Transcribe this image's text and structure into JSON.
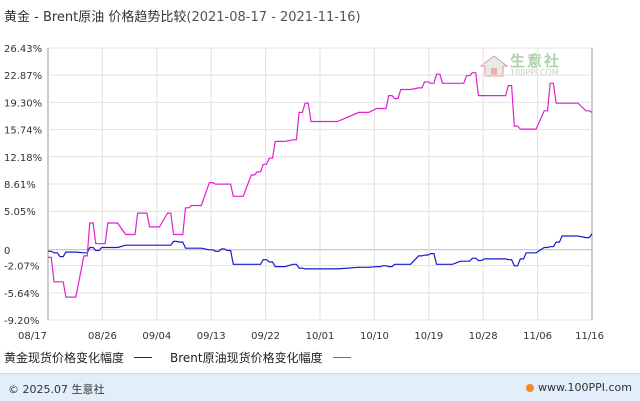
{
  "header": {
    "title": "黄金 - Brent原油 价格趋势比较",
    "date_range": "(2021-08-17 - 2021-11-16)"
  },
  "legend": [
    {
      "label": "黄金现货价格变化幅度",
      "color": "#1a1acc"
    },
    {
      "label": "Brent原油现货价格变化幅度",
      "color": "#e020d0"
    }
  ],
  "footer": {
    "copyright": "© 2025.07 生意社",
    "site": "www.100PPI.com"
  },
  "watermark": {
    "name": "生意社",
    "url": "100PPI.COM"
  },
  "chart_data": {
    "type": "line",
    "title": "黄金 - Brent原油 价格趋势比较",
    "ylim": [
      -9.2,
      26.43
    ],
    "y_ticks": [
      "26.43%",
      "22.87%",
      "19.30%",
      "15.74%",
      "12.18%",
      "8.61%",
      "5.05%",
      "0",
      "-2.07%",
      "-5.64%",
      "-9.20%"
    ],
    "y_tick_values": [
      26.43,
      22.87,
      19.3,
      15.74,
      12.18,
      8.61,
      5.05,
      0,
      -2.07,
      -5.64,
      -9.2
    ],
    "x_ticks": [
      "08/17",
      "08/26",
      "09/04",
      "09/13",
      "09/22",
      "10/01",
      "10/10",
      "10/19",
      "10/28",
      "11/06",
      "11/16"
    ],
    "x_range": [
      "2021-08-17",
      "2021-11-16"
    ],
    "grid": true,
    "legend_position": "bottom",
    "series": [
      {
        "name": "黄金现货价格变化幅度",
        "color": "#1a1acc",
        "x": [
          "2021-08-17",
          "2021-08-18",
          "2021-08-19",
          "2021-08-20",
          "2021-08-23",
          "2021-08-24",
          "2021-08-25",
          "2021-08-26",
          "2021-08-27",
          "2021-08-30",
          "2021-08-31",
          "2021-09-01",
          "2021-09-02",
          "2021-09-03",
          "2021-09-06",
          "2021-09-07",
          "2021-09-08",
          "2021-09-09",
          "2021-09-10",
          "2021-09-13",
          "2021-09-14",
          "2021-09-15",
          "2021-09-16",
          "2021-09-17",
          "2021-09-20",
          "2021-09-21",
          "2021-09-22",
          "2021-09-23",
          "2021-09-24",
          "2021-09-27",
          "2021-09-28",
          "2021-09-29",
          "2021-09-30",
          "2021-10-08",
          "2021-10-11",
          "2021-10-12",
          "2021-10-13",
          "2021-10-14",
          "2021-10-15",
          "2021-10-18",
          "2021-10-19",
          "2021-10-20",
          "2021-10-21",
          "2021-10-22",
          "2021-10-25",
          "2021-10-26",
          "2021-10-27",
          "2021-10-28",
          "2021-10-29",
          "2021-11-01",
          "2021-11-02",
          "2021-11-03",
          "2021-11-04",
          "2021-11-05",
          "2021-11-08",
          "2021-11-09",
          "2021-11-10",
          "2021-11-11",
          "2021-11-12",
          "2021-11-15",
          "2021-11-16"
        ],
        "values": [
          -0.2,
          -0.4,
          -0.9,
          -0.3,
          -0.4,
          0.3,
          -0.1,
          0.3,
          0.3,
          0.6,
          0.6,
          0.6,
          0.6,
          0.6,
          0.6,
          1.1,
          1.0,
          0.2,
          0.2,
          0.0,
          -0.2,
          0.1,
          -0.1,
          -1.9,
          -1.9,
          -1.9,
          -1.3,
          -1.6,
          -2.2,
          -1.9,
          -2.4,
          -2.5,
          -2.5,
          -2.3,
          -2.2,
          -2.1,
          -2.2,
          -1.9,
          -1.9,
          -0.8,
          -0.7,
          -0.5,
          -1.9,
          -1.9,
          -1.5,
          -1.5,
          -1.1,
          -1.4,
          -1.2,
          -1.2,
          -1.3,
          -2.1,
          -1.2,
          -0.4,
          0.3,
          0.4,
          1.0,
          1.8,
          1.8,
          1.6,
          2.1
        ]
      },
      {
        "name": "Brent原油现货价格变化幅度",
        "color": "#e020d0",
        "x": [
          "2021-08-17",
          "2021-08-18",
          "2021-08-19",
          "2021-08-20",
          "2021-08-23",
          "2021-08-24",
          "2021-08-25",
          "2021-08-26",
          "2021-08-27",
          "2021-08-30",
          "2021-08-31",
          "2021-09-01",
          "2021-09-02",
          "2021-09-03",
          "2021-09-06",
          "2021-09-07",
          "2021-09-08",
          "2021-09-09",
          "2021-09-10",
          "2021-09-13",
          "2021-09-14",
          "2021-09-15",
          "2021-09-16",
          "2021-09-17",
          "2021-09-20",
          "2021-09-21",
          "2021-09-22",
          "2021-09-23",
          "2021-09-24",
          "2021-09-27",
          "2021-09-28",
          "2021-09-29",
          "2021-09-30",
          "2021-10-08",
          "2021-10-11",
          "2021-10-12",
          "2021-10-13",
          "2021-10-14",
          "2021-10-15",
          "2021-10-18",
          "2021-10-19",
          "2021-10-20",
          "2021-10-21",
          "2021-10-22",
          "2021-10-25",
          "2021-10-26",
          "2021-10-27",
          "2021-10-28",
          "2021-10-29",
          "2021-11-01",
          "2021-11-02",
          "2021-11-03",
          "2021-11-04",
          "2021-11-05",
          "2021-11-08",
          "2021-11-09",
          "2021-11-10",
          "2021-11-11",
          "2021-11-12",
          "2021-11-15",
          "2021-11-16"
        ],
        "values": [
          -1.0,
          -4.2,
          -4.2,
          -6.2,
          -0.8,
          3.5,
          0.8,
          0.8,
          3.5,
          2.0,
          2.0,
          4.8,
          4.8,
          3.0,
          4.8,
          2.0,
          2.0,
          5.5,
          5.8,
          8.8,
          8.6,
          8.6,
          8.6,
          7.0,
          9.8,
          10.2,
          11.2,
          12.0,
          14.2,
          14.4,
          18.0,
          19.2,
          16.8,
          18.0,
          18.5,
          18.5,
          20.2,
          19.8,
          21.0,
          21.2,
          22.0,
          21.8,
          23.0,
          21.8,
          21.8,
          22.8,
          23.2,
          20.2,
          20.2,
          20.2,
          21.5,
          16.2,
          15.8,
          15.8,
          18.2,
          21.8,
          19.2,
          19.2,
          19.2,
          18.2,
          18.0
        ]
      }
    ]
  }
}
